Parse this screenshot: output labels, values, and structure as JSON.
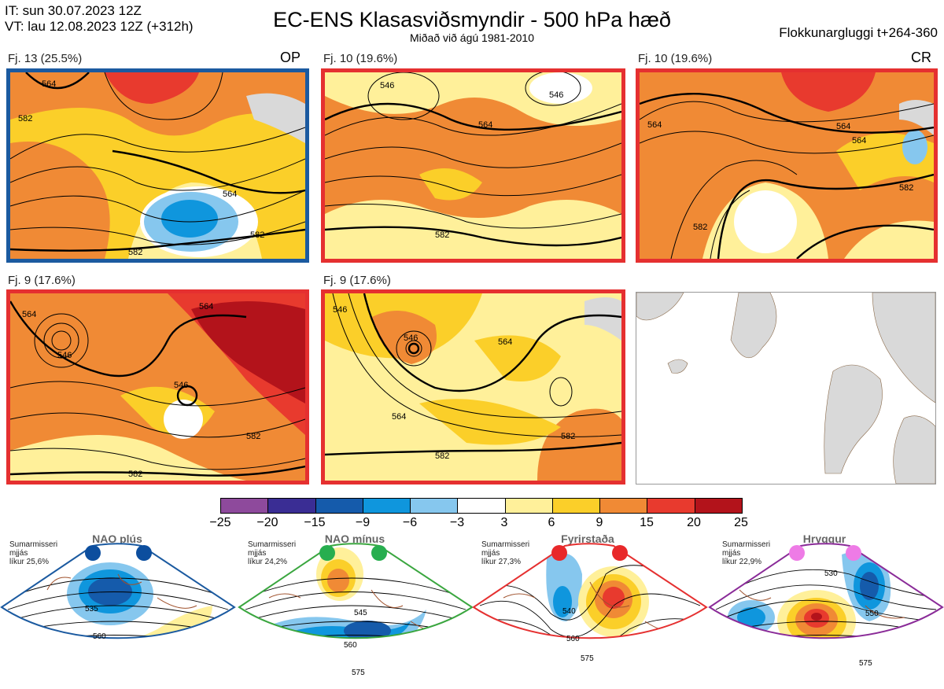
{
  "header": {
    "it_line": "IT: sun 30.07.2023 12Z",
    "vt_line": "VT: lau 12.08.2023 12Z  (+312h)",
    "title": "EC-ENS Klasasviðsmyndir - 500 hPa hæð",
    "subtitle": "Miðað við ágú 1981-2010",
    "window": "Flokkunargluggi t+264-360"
  },
  "clusters": [
    {
      "label": "Fj. 13 (25.5%)",
      "tag": "OP",
      "border": "#1b5aa0",
      "contours": [
        "564",
        "564",
        "582",
        "582",
        "582"
      ]
    },
    {
      "label": "Fj. 10 (19.6%)",
      "tag": "",
      "border": "#e53030",
      "contours": [
        "546",
        "546",
        "564",
        "582"
      ]
    },
    {
      "label": "Fj. 10 (19.6%)",
      "tag": "CR",
      "border": "#e53030",
      "contours": [
        "564",
        "564",
        "582",
        "582",
        "564"
      ]
    },
    {
      "label": "Fj. 9 (17.6%)",
      "tag": "",
      "border": "#e53030",
      "contours": [
        "564",
        "546",
        "546",
        "564",
        "582",
        "582"
      ]
    },
    {
      "label": "Fj. 9 (17.6%)",
      "tag": "",
      "border": "#e53030",
      "contours": [
        "546",
        "546",
        "564",
        "564",
        "582",
        "582"
      ]
    }
  ],
  "colorbar": {
    "ticks": [
      "−25",
      "−20",
      "−15",
      "−9",
      "−6",
      "−3",
      "3",
      "6",
      "9",
      "15",
      "20",
      "25"
    ],
    "colors": [
      "#8e4a9c",
      "#3a2d94",
      "#155bab",
      "#0f96dd",
      "#86c7ee",
      "#ffffff",
      "#fff09a",
      "#fbcf29",
      "#f08a35",
      "#e83a2e",
      "#b3131b"
    ]
  },
  "regimes": [
    {
      "title": "NAO plús",
      "season": "Sumarmisseri",
      "mean": "mjjás",
      "prob": "líkur 25,6%",
      "color": "#1b5aa0",
      "dot": "#0c4e9e",
      "contours": [
        "535",
        "560"
      ]
    },
    {
      "title": "NAO mínus",
      "season": "Sumarmisseri",
      "mean": "mjjás",
      "prob": "líkur 24,2%",
      "color": "#3aa63f",
      "dot": "#27ae4f",
      "contours": [
        "545",
        "560",
        "575"
      ]
    },
    {
      "title": "Fyrirstaða",
      "season": "Sumarmisseri",
      "mean": "mjjás",
      "prob": "líkur 27,3%",
      "color": "#e53030",
      "dot": "#e8282a",
      "contours": [
        "540",
        "560",
        "575"
      ]
    },
    {
      "title": "Hryggur",
      "season": "Sumarmisseri",
      "mean": "mjjás",
      "prob": "líkur 22,9%",
      "color": "#8a2b98",
      "dot": "#ee7be6",
      "contours": [
        "530",
        "550",
        "575"
      ]
    }
  ]
}
